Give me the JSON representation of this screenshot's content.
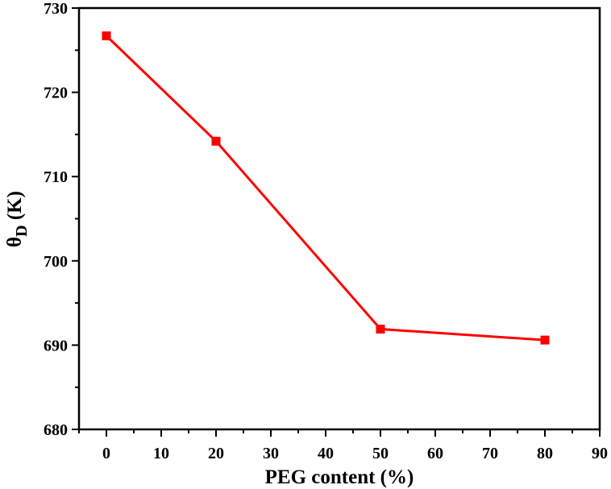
{
  "chart_data": {
    "type": "line",
    "title": "",
    "xlabel": "PEG content (%)",
    "ylabel_main": "θ",
    "ylabel_sub": "D",
    "ylabel_unit": " (K)",
    "xlim": [
      -5,
      90
    ],
    "ylim": [
      680,
      730
    ],
    "xticks": [
      0,
      10,
      20,
      30,
      40,
      50,
      60,
      70,
      80,
      90
    ],
    "yticks": [
      680,
      690,
      700,
      710,
      720,
      730
    ],
    "x_minor_step": 5,
    "y_minor_step": 5,
    "grid": false,
    "legend": "none",
    "series": [
      {
        "x": [
          0,
          20,
          50,
          80
        ],
        "y": [
          726.7,
          714.2,
          691.9,
          690.6
        ],
        "color": "#ff0000",
        "marker": "square"
      }
    ]
  }
}
